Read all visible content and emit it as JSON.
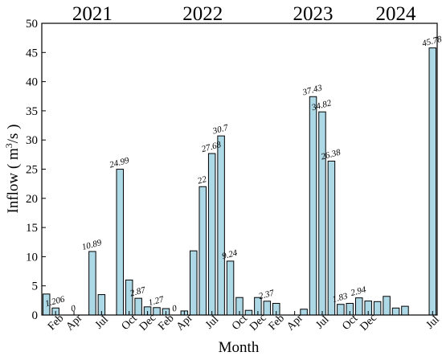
{
  "chart_data": {
    "type": "bar",
    "title": "",
    "xlabel": "Month",
    "ylabel_main": "Inflow ( m",
    "ylabel_sup": "3",
    "ylabel_tail": "/s )",
    "ylim": [
      0,
      50
    ],
    "yticks": [
      0,
      5,
      10,
      15,
      20,
      25,
      30,
      35,
      40,
      45,
      50
    ],
    "bar_color": "#add8e6",
    "year_labels": [
      {
        "label": "2021",
        "at": 5
      },
      {
        "label": "2022",
        "at": 17
      },
      {
        "label": "2023",
        "at": 29
      },
      {
        "label": "2024",
        "at": 38
      }
    ],
    "x_tick_labels": [
      {
        "label": "Feb",
        "at": 1
      },
      {
        "label": "Apr",
        "at": 3
      },
      {
        "label": "Jul",
        "at": 6
      },
      {
        "label": "Oct",
        "at": 9
      },
      {
        "label": "Dec",
        "at": 11
      },
      {
        "label": "Feb",
        "at": 13
      },
      {
        "label": "Apr",
        "at": 15
      },
      {
        "label": "Jul",
        "at": 18
      },
      {
        "label": "Oct",
        "at": 21
      },
      {
        "label": "Dec",
        "at": 23
      },
      {
        "label": "Feb",
        "at": 25
      },
      {
        "label": "Apr",
        "at": 27
      },
      {
        "label": "Jul",
        "at": 30
      },
      {
        "label": "Oct",
        "at": 33
      },
      {
        "label": "Dec",
        "at": 35
      },
      {
        "label": "Jul",
        "at": 42
      }
    ],
    "values": [
      3.6,
      1.206,
      0,
      0,
      0,
      10.89,
      3.5,
      0,
      24.99,
      6.0,
      2.87,
      1.4,
      1.27,
      1.1,
      0,
      0.7,
      11.0,
      22,
      27.68,
      30.7,
      9.24,
      3.0,
      0.8,
      3.0,
      2.37,
      2.0,
      0,
      0,
      1.0,
      37.43,
      34.82,
      26.38,
      1.83,
      2.0,
      2.94,
      2.4,
      2.3,
      3.2,
      1.2,
      1.5,
      0,
      0,
      45.78
    ],
    "data_labels": [
      {
        "label": "1.206",
        "at": 1
      },
      {
        "label": "0",
        "at": 3
      },
      {
        "label": "10.89",
        "at": 5
      },
      {
        "label": "24.99",
        "at": 8
      },
      {
        "label": "2.87",
        "at": 10
      },
      {
        "label": "1.27",
        "at": 12
      },
      {
        "label": "0",
        "at": 14
      },
      {
        "label": "22",
        "at": 17
      },
      {
        "label": "27.68",
        "at": 18
      },
      {
        "label": "30.7",
        "at": 19
      },
      {
        "label": "9.24",
        "at": 20
      },
      {
        "label": "2.37",
        "at": 24
      },
      {
        "label": "37.43",
        "at": 29
      },
      {
        "label": "34.82",
        "at": 30
      },
      {
        "label": "26.38",
        "at": 31
      },
      {
        "label": "1.83",
        "at": 32
      },
      {
        "label": "2.94",
        "at": 34
      },
      {
        "label": "45.78",
        "at": 42
      }
    ]
  }
}
